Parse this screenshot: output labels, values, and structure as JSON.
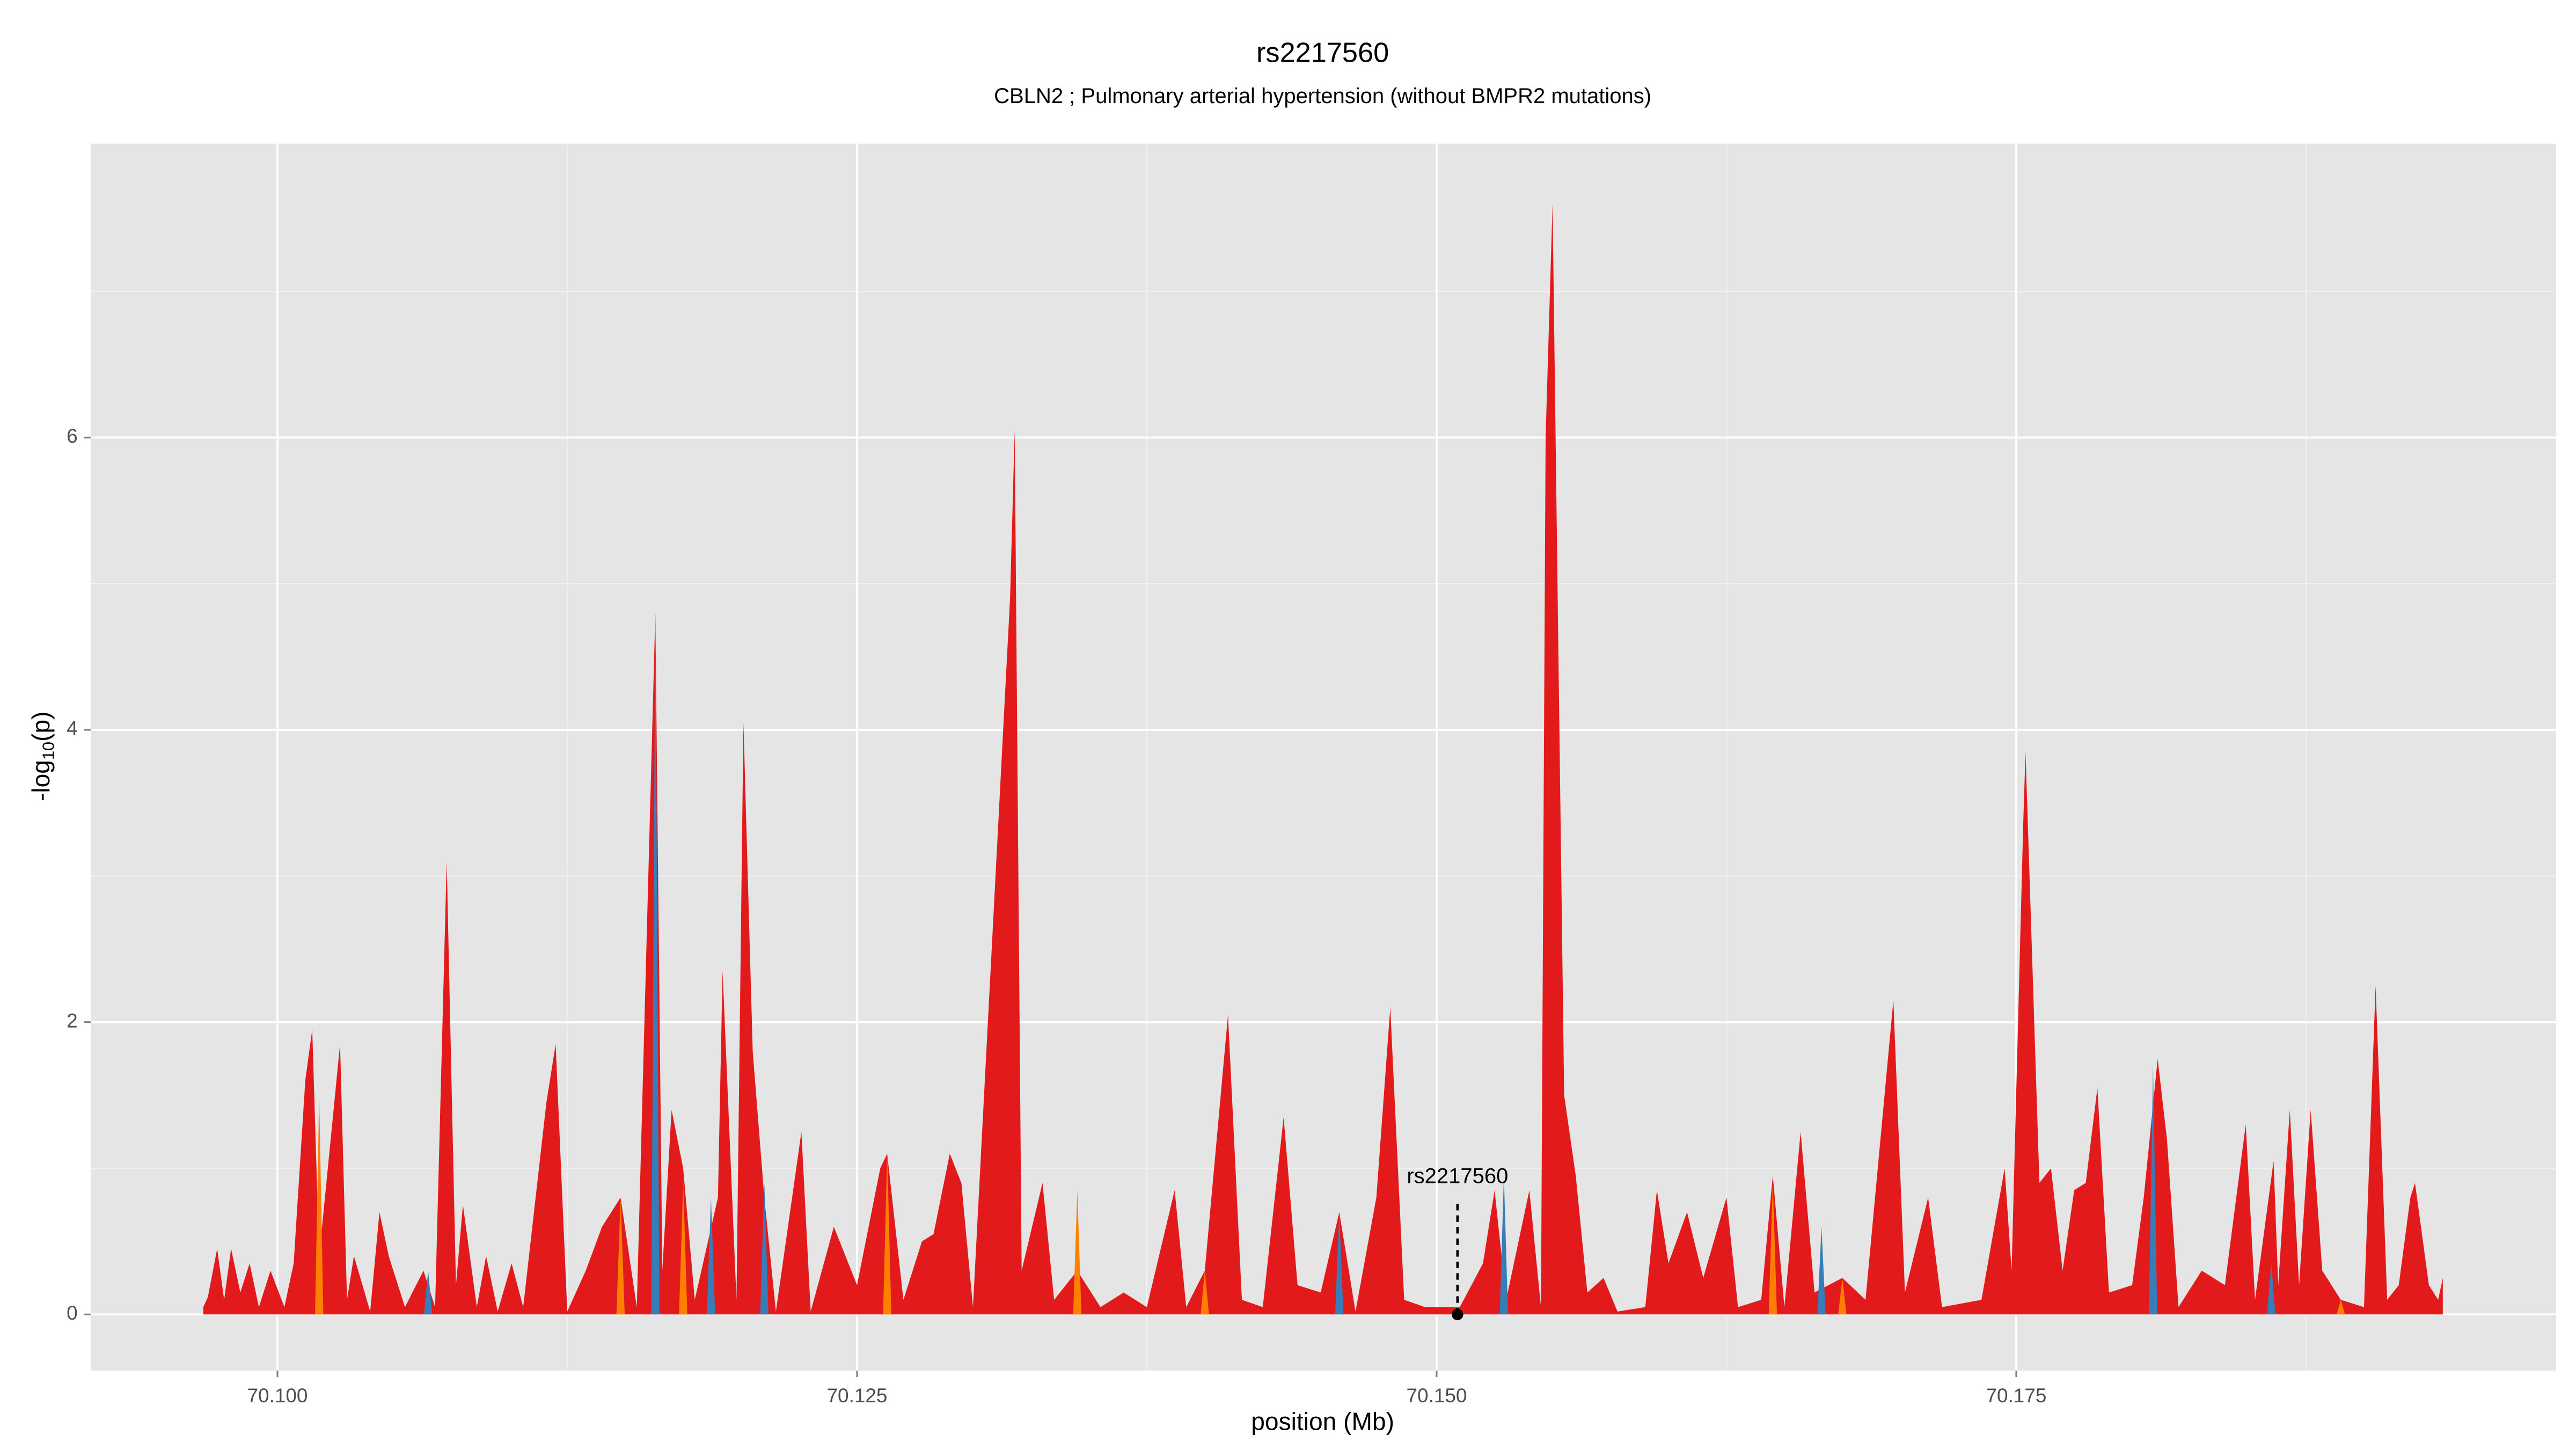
{
  "chart_data": {
    "type": "area",
    "title": "rs2217560",
    "subtitle": "CBLN2 ; Pulmonary arterial hypertension (without BMPR2 mutations)",
    "x_label": "position (Mb)",
    "y_label": {
      "prefix": "-log",
      "sub": "10",
      "suffix": "(p)"
    },
    "xlim": [
      70.09195,
      70.19829
    ],
    "ylim": [
      -0.384,
      8.011
    ],
    "xticks": [
      {
        "value": 70.1,
        "label": "70.100"
      },
      {
        "value": 70.125,
        "label": "70.125"
      },
      {
        "value": 70.15,
        "label": "70.150"
      },
      {
        "value": 70.175,
        "label": "70.175"
      }
    ],
    "yticks": [
      0,
      2,
      4,
      6
    ],
    "grid": true,
    "series": [
      {
        "color": "#e31a1c",
        "x": [
          70.0968,
          70.097,
          70.0974,
          70.0977,
          70.098,
          70.0984,
          70.0988,
          70.0992,
          70.0997,
          70.1003,
          70.1007,
          70.1012,
          70.1015,
          70.1018,
          70.1027,
          70.103,
          70.1033,
          70.104,
          70.1044,
          70.1048,
          70.1055,
          70.1063,
          70.1068,
          70.1073,
          70.1077,
          70.108,
          70.1086,
          70.109,
          70.1095,
          70.1101,
          70.1106,
          70.1116,
          70.112,
          70.1125,
          70.1133,
          70.114,
          70.1148,
          70.1155,
          70.1163,
          70.1166,
          70.117,
          70.1175,
          70.118,
          70.119,
          70.1192,
          70.1198,
          70.1201,
          70.1205,
          70.121,
          70.1215,
          70.1222,
          70.1226,
          70.123,
          70.124,
          70.125,
          70.126,
          70.1263,
          70.127,
          70.1278,
          70.1283,
          70.129,
          70.1295,
          70.13,
          70.1316,
          70.1318,
          70.1321,
          70.133,
          70.1335,
          70.1345,
          70.1355,
          70.1365,
          70.1375,
          70.1387,
          70.1392,
          70.14,
          70.141,
          70.1416,
          70.1425,
          70.1434,
          70.144,
          70.145,
          70.1458,
          70.1465,
          70.1474,
          70.148,
          70.1486,
          70.1495,
          70.151,
          70.152,
          70.1525,
          70.153,
          70.154,
          70.1545,
          70.1547,
          70.155,
          70.1555,
          70.156,
          70.1565,
          70.1572,
          70.1578,
          70.159,
          70.1595,
          70.16,
          70.1608,
          70.1615,
          70.1625,
          70.163,
          70.164,
          70.1645,
          70.165,
          70.1657,
          70.1663,
          70.1675,
          70.1685,
          70.1697,
          70.1702,
          70.1712,
          70.1718,
          70.1735,
          70.1745,
          70.1748,
          70.1753,
          70.1754,
          70.176,
          70.1765,
          70.177,
          70.1775,
          70.178,
          70.1785,
          70.179,
          70.18,
          70.1805,
          70.1811,
          70.1815,
          70.182,
          70.183,
          70.184,
          70.1849,
          70.1853,
          70.1861,
          70.1863,
          70.1868,
          70.1872,
          70.1877,
          70.1882,
          70.189,
          70.19,
          70.1905,
          70.191,
          70.1915,
          70.192,
          70.1922,
          70.1928,
          70.1932,
          70.1934
        ],
        "values": [
          0.05,
          0.12,
          0.45,
          0.1,
          0.45,
          0.15,
          0.35,
          0.05,
          0.3,
          0.05,
          0.35,
          1.6,
          1.95,
          0.4,
          1.85,
          0.1,
          0.4,
          0.02,
          0.7,
          0.4,
          0.05,
          0.3,
          0.05,
          3.1,
          0.2,
          0.75,
          0.05,
          0.4,
          0.02,
          0.35,
          0.05,
          1.45,
          1.85,
          0.02,
          0.3,
          0.6,
          0.8,
          0.05,
          4.8,
          0.3,
          1.4,
          1.0,
          0.1,
          0.8,
          2.35,
          0.1,
          4.05,
          1.8,
          0.8,
          0.02,
          0.8,
          1.25,
          0.02,
          0.6,
          0.2,
          1.0,
          1.1,
          0.1,
          0.5,
          0.55,
          1.1,
          0.9,
          0.05,
          4.9,
          6.05,
          0.3,
          0.9,
          0.1,
          0.3,
          0.05,
          0.15,
          0.05,
          0.85,
          0.05,
          0.3,
          2.05,
          0.1,
          0.05,
          1.35,
          0.2,
          0.15,
          0.7,
          0.02,
          0.8,
          2.1,
          0.1,
          0.05,
          0.05,
          0.35,
          0.85,
          0.1,
          0.85,
          0.05,
          6.0,
          7.6,
          1.5,
          0.95,
          0.15,
          0.25,
          0.02,
          0.05,
          0.85,
          0.35,
          0.7,
          0.25,
          0.8,
          0.05,
          0.1,
          0.95,
          0.05,
          1.25,
          0.15,
          0.25,
          0.1,
          2.15,
          0.15,
          0.8,
          0.05,
          0.1,
          1.0,
          0.3,
          3.35,
          3.85,
          0.9,
          1.0,
          0.3,
          0.85,
          0.9,
          1.55,
          0.15,
          0.2,
          0.8,
          1.75,
          1.2,
          0.05,
          0.3,
          0.2,
          1.3,
          0.1,
          1.05,
          0.2,
          1.4,
          0.2,
          1.4,
          0.3,
          0.1,
          0.05,
          2.25,
          0.1,
          0.2,
          0.8,
          0.9,
          0.2,
          0.1,
          0.25
        ]
      },
      {
        "color": "#377eb8",
        "x": [
          70.1065,
          70.1163,
          70.1187,
          70.121,
          70.1458,
          70.1529,
          70.1666,
          70.1809,
          70.186
        ],
        "values": [
          0.3,
          4.75,
          0.8,
          0.9,
          0.7,
          0.95,
          0.6,
          1.7,
          0.35
        ]
      },
      {
        "color": "#ff7f00",
        "x": [
          70.1018,
          70.1148,
          70.1175,
          70.1263,
          70.1345,
          70.14,
          70.1645,
          70.1675,
          70.189
        ],
        "values": [
          1.5,
          0.8,
          0.9,
          1.1,
          0.85,
          0.3,
          0.9,
          0.25,
          0.1
        ]
      }
    ],
    "annotation": {
      "label": "rs2217560",
      "x": 70.1509,
      "y": 0
    }
  }
}
